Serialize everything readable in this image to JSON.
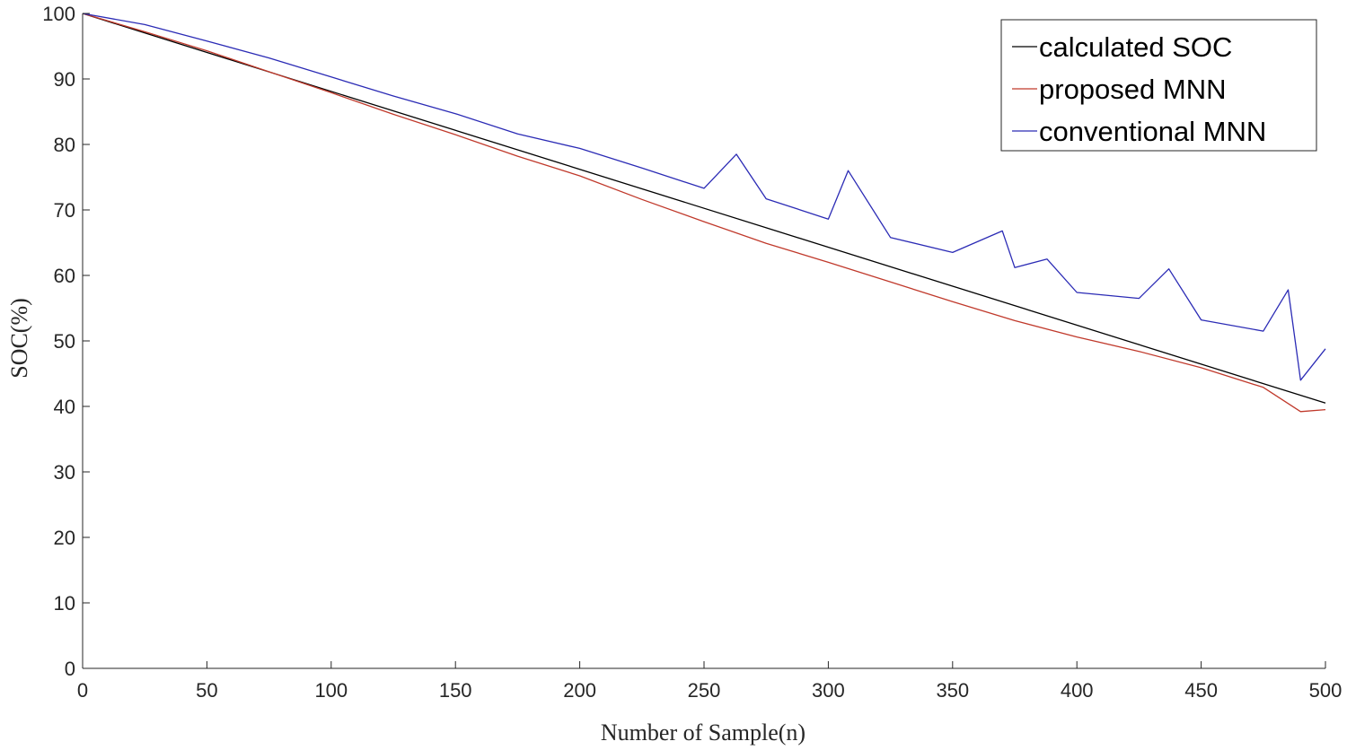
{
  "chart_data": {
    "type": "line",
    "xlabel": "Number of Sample(n)",
    "ylabel": "SOC(%)",
    "xlim": [
      0,
      500
    ],
    "ylim": [
      0,
      100
    ],
    "x_ticks": [
      0,
      50,
      100,
      150,
      200,
      250,
      300,
      350,
      400,
      450,
      500
    ],
    "y_ticks": [
      0,
      10,
      20,
      30,
      40,
      50,
      60,
      70,
      80,
      90,
      100
    ],
    "grid": false,
    "legend_position": "top-right",
    "series": [
      {
        "name": "calculated SOC",
        "color": "#000000",
        "x": [
          0,
          500
        ],
        "y": [
          100,
          40.5
        ]
      },
      {
        "name": "proposed MNN",
        "color": "#c0392b",
        "x": [
          0,
          25,
          50,
          75,
          100,
          125,
          150,
          175,
          200,
          225,
          250,
          275,
          300,
          325,
          350,
          375,
          400,
          425,
          450,
          475,
          490,
          500
        ],
        "y": [
          100,
          97.2,
          94.3,
          91.1,
          87.9,
          84.6,
          81.5,
          78.2,
          75.2,
          71.6,
          68.2,
          64.9,
          62.0,
          59.0,
          56.0,
          53.1,
          50.6,
          48.4,
          45.9,
          42.9,
          39.2,
          39.5
        ]
      },
      {
        "name": "conventional MNN",
        "color": "#2b2bb5",
        "x": [
          0,
          25,
          50,
          75,
          100,
          125,
          150,
          175,
          200,
          225,
          250,
          263,
          275,
          300,
          308,
          325,
          350,
          370,
          375,
          388,
          400,
          425,
          437,
          450,
          475,
          485,
          490,
          500
        ],
        "y": [
          100,
          98.3,
          95.8,
          93.2,
          90.3,
          87.4,
          84.7,
          81.6,
          79.4,
          76.4,
          73.3,
          78.5,
          71.7,
          68.6,
          76.0,
          65.8,
          63.5,
          66.8,
          61.2,
          62.5,
          57.4,
          56.5,
          61.0,
          53.2,
          51.5,
          57.8,
          44.0,
          48.8
        ]
      }
    ]
  }
}
